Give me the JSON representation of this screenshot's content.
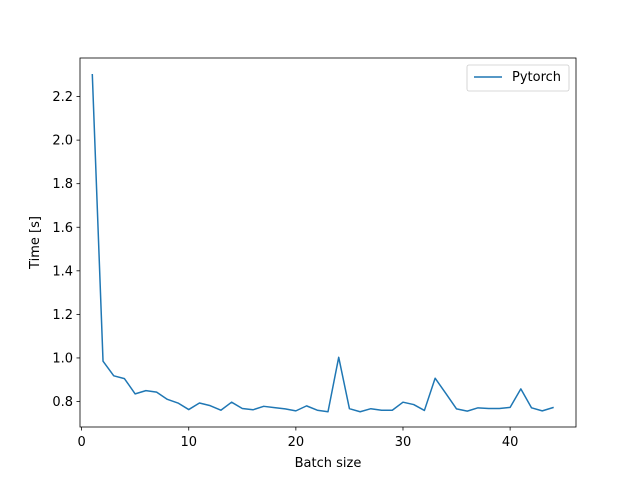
{
  "chart_data": {
    "type": "line",
    "title": "",
    "xlabel": "Batch size",
    "ylabel": "Time [s]",
    "xlim": [
      -0.15,
      46.15
    ],
    "ylim": [
      0.683,
      2.377
    ],
    "xticks": [
      0,
      10,
      20,
      30,
      40
    ],
    "xtick_labels": [
      "0",
      "10",
      "20",
      "30",
      "40"
    ],
    "yticks": [
      0.8,
      1.0,
      1.2,
      1.4,
      1.6,
      1.8,
      2.0,
      2.2
    ],
    "ytick_labels": [
      "0.8",
      "1.0",
      "1.2",
      "1.4",
      "1.6",
      "1.8",
      "2.0",
      "2.2"
    ],
    "grid": false,
    "legend_position": "top-right",
    "series": [
      {
        "name": "Pytorch",
        "color": "#1f77b4",
        "x": [
          1,
          2,
          3,
          4,
          5,
          6,
          7,
          8,
          9,
          10,
          11,
          12,
          13,
          14,
          15,
          16,
          17,
          18,
          19,
          20,
          21,
          22,
          23,
          24,
          25,
          26,
          27,
          28,
          29,
          30,
          31,
          32,
          33,
          34,
          35,
          36,
          37,
          38,
          39,
          40,
          41,
          42,
          43,
          44
        ],
        "y": [
          2.3,
          0.985,
          0.918,
          0.905,
          0.835,
          0.85,
          0.843,
          0.81,
          0.793,
          0.763,
          0.793,
          0.781,
          0.76,
          0.797,
          0.768,
          0.762,
          0.778,
          0.772,
          0.766,
          0.757,
          0.78,
          0.76,
          0.753,
          1.003,
          0.767,
          0.753,
          0.767,
          0.76,
          0.76,
          0.797,
          0.786,
          0.759,
          0.907,
          0.837,
          0.766,
          0.756,
          0.771,
          0.768,
          0.768,
          0.773,
          0.858,
          0.771,
          0.757,
          0.772
        ]
      }
    ]
  }
}
